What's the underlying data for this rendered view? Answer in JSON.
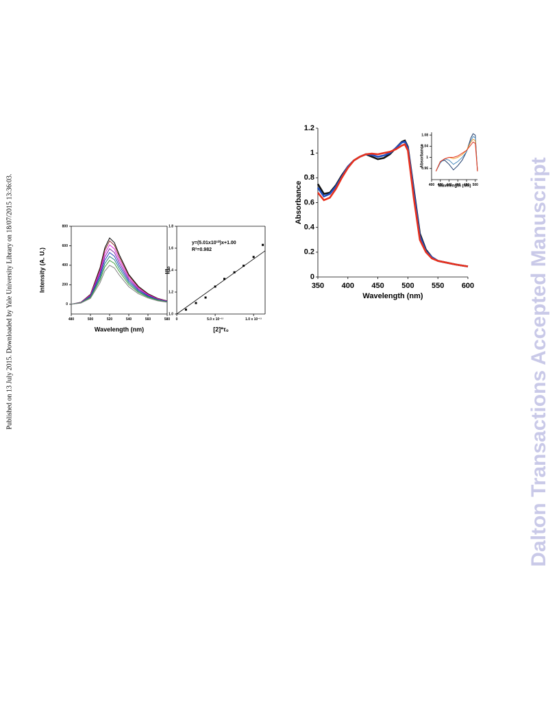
{
  "sidebar": "Published on 13 July 2015. Downloaded by Yale University Library on 18/07/2015 13:36:03.",
  "watermark": "Dalton Transactions Accepted Manuscript",
  "chart_data": [
    {
      "type": "line",
      "x_label": "Wavelength (nm)",
      "y_label": "Intensity (A. U.)",
      "x": [
        480,
        490,
        500,
        510,
        515,
        520,
        525,
        530,
        540,
        550,
        560,
        570,
        580
      ],
      "series": [
        {
          "color": "#000000",
          "values": [
            0,
            20,
            102,
            374,
            578,
            680,
            632,
            510,
            306,
            184,
            109,
            61,
            34
          ]
        },
        {
          "color": "#8b2a2a",
          "values": [
            0,
            20,
            98,
            358,
            553,
            650,
            605,
            488,
            293,
            176,
            104,
            59,
            33
          ]
        },
        {
          "color": "#e020e0",
          "values": [
            0,
            18,
            92,
            336,
            519,
            610,
            567,
            458,
            275,
            165,
            98,
            55,
            31
          ]
        },
        {
          "color": "#7a1fa0",
          "values": [
            0,
            17,
            86,
            314,
            485,
            570,
            530,
            428,
            257,
            154,
            91,
            51,
            29
          ]
        },
        {
          "color": "#2040c0",
          "values": [
            0,
            16,
            80,
            292,
            451,
            530,
            493,
            398,
            239,
            143,
            85,
            48,
            27
          ]
        },
        {
          "color": "#208080",
          "values": [
            0,
            15,
            74,
            270,
            417,
            490,
            456,
            368,
            221,
            132,
            78,
            44,
            25
          ]
        },
        {
          "color": "#40a040",
          "values": [
            0,
            14,
            68,
            248,
            383,
            450,
            419,
            338,
            203,
            122,
            72,
            41,
            23
          ]
        },
        {
          "color": "#808080",
          "values": [
            0,
            12,
            60,
            220,
            340,
            400,
            372,
            300,
            180,
            108,
            64,
            36,
            20
          ]
        }
      ],
      "xlim": [
        480,
        580
      ],
      "xticks": [
        480,
        500,
        520,
        540,
        560,
        580
      ],
      "ylim": [
        -100,
        800
      ],
      "yticks": [
        0,
        200,
        400,
        600,
        800
      ]
    },
    {
      "type": "scatter",
      "x_label": "[2]*τ₀",
      "y_label": "I/I₀",
      "annotations": [
        "y=(5.01x10¹⁰)x+1.00",
        "R²=0.982"
      ],
      "fit": {
        "slope": 50100000000,
        "intercept": 1.0
      },
      "x": [
        1.2e-12,
        2.5e-12,
        3.75e-12,
        5e-12,
        6.2e-12,
        7.5e-12,
        8.7e-12,
        1e-11,
        1.12e-11
      ],
      "values": [
        1.04,
        1.1,
        1.15,
        1.25,
        1.32,
        1.38,
        1.44,
        1.52,
        1.63
      ],
      "color": "#000000",
      "xlim": [
        0,
        1.15e-11
      ],
      "xticks": [
        0,
        {
          "value": 5e-12,
          "label": "5.0 x 10⁻¹²"
        },
        {
          "value": 1e-11,
          "label": "1.0 x 10⁻¹¹"
        }
      ],
      "ylim": [
        1.0,
        1.8
      ],
      "yticks": [
        {
          "value": 1.0,
          "label": "1.0"
        },
        {
          "value": 1.2,
          "label": "1.2"
        },
        {
          "value": 1.4,
          "label": "1.4"
        },
        {
          "value": 1.6,
          "label": "1.6"
        },
        {
          "value": 1.8,
          "label": "1.8"
        }
      ]
    },
    {
      "type": "line",
      "x_label": "Wavelength (nm)",
      "y_label": "Absorbance",
      "x": [
        350,
        360,
        370,
        380,
        390,
        400,
        410,
        420,
        430,
        440,
        450,
        460,
        470,
        480,
        490,
        495,
        500,
        510,
        520,
        530,
        540,
        550,
        560,
        580,
        600
      ],
      "series": [
        {
          "color": "#111111",
          "values": [
            0.75,
            0.67,
            0.68,
            0.74,
            0.82,
            0.89,
            0.94,
            0.97,
            0.99,
            0.97,
            0.95,
            0.96,
            0.99,
            1.04,
            1.09,
            1.1,
            1.05,
            0.7,
            0.35,
            0.22,
            0.16,
            0.13,
            0.12,
            0.1,
            0.085
          ]
        },
        {
          "color": "#1f4fc0",
          "values": [
            0.72,
            0.65,
            0.67,
            0.73,
            0.81,
            0.89,
            0.94,
            0.97,
            0.99,
            0.985,
            0.97,
            0.98,
            1.0,
            1.04,
            1.085,
            1.09,
            1.04,
            0.68,
            0.33,
            0.21,
            0.16,
            0.13,
            0.12,
            0.1,
            0.085
          ]
        },
        {
          "color": "#e8301c",
          "values": [
            0.68,
            0.62,
            0.64,
            0.71,
            0.8,
            0.88,
            0.94,
            0.97,
            0.99,
            0.995,
            0.99,
            1.0,
            1.01,
            1.03,
            1.06,
            1.07,
            1.02,
            0.63,
            0.3,
            0.2,
            0.15,
            0.13,
            0.12,
            0.1,
            0.085
          ]
        }
      ],
      "xlim": [
        350,
        600
      ],
      "xticks": [
        350,
        400,
        450,
        500,
        550,
        600
      ],
      "ylim": [
        0,
        1.2
      ],
      "yticks": [
        0,
        0.2,
        0.4,
        0.6,
        0.8,
        1,
        1.2
      ]
    },
    {
      "type": "line",
      "x_label": "Wavelength (nm)",
      "y_label": "Absorbance",
      "x": [
        410,
        420,
        430,
        440,
        450,
        460,
        470,
        480,
        490,
        495,
        500,
        505
      ],
      "series": [
        {
          "color": "#1b3a6b",
          "values": [
            0.95,
            0.985,
            0.99,
            0.975,
            0.955,
            0.97,
            0.99,
            1.02,
            1.07,
            1.085,
            1.08,
            0.95
          ]
        },
        {
          "color": "#4f8fc0",
          "values": [
            0.95,
            0.98,
            0.995,
            0.99,
            0.975,
            0.985,
            1.0,
            1.02,
            1.06,
            1.075,
            1.07,
            0.95
          ]
        },
        {
          "color": "#f0a030",
          "values": [
            0.95,
            0.985,
            0.995,
            1.0,
            0.995,
            1.0,
            1.01,
            1.025,
            1.055,
            1.065,
            1.06,
            0.95
          ]
        },
        {
          "color": "#e03020",
          "values": [
            0.95,
            0.985,
            0.995,
            1.0,
            1.0,
            1.005,
            1.015,
            1.025,
            1.045,
            1.055,
            1.05,
            0.95
          ]
        }
      ],
      "xlim": [
        400,
        505
      ],
      "xticks": [
        400,
        420,
        440,
        460,
        480,
        500
      ],
      "ylim": [
        0.92,
        1.09
      ],
      "yticks": [
        0.96,
        1,
        1.04,
        1.08
      ]
    }
  ]
}
